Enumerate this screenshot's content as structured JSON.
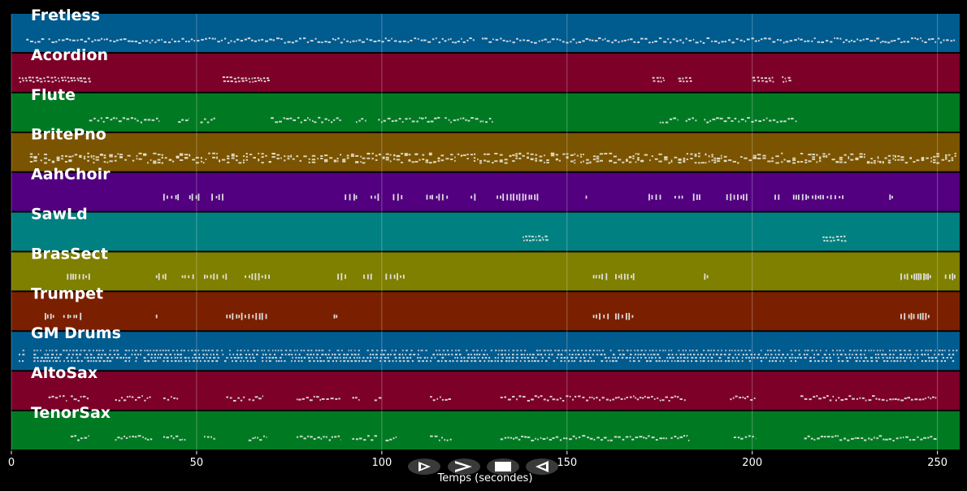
{
  "chart_data": {
    "type": "piano-roll",
    "xlabel": "Temps (secondes)",
    "xlim": [
      0,
      256
    ],
    "xticks": [
      0,
      50,
      100,
      150,
      200,
      250
    ],
    "grid": true,
    "tracks": [
      {
        "name": "Fretless",
        "color": "#005b8f",
        "pattern": "dense",
        "segments": [
          [
            4,
            9
          ],
          [
            10,
            125
          ],
          [
            127,
            255
          ]
        ]
      },
      {
        "name": "Acordion",
        "color": "#7d0028",
        "pattern": "cluster",
        "segments": [
          [
            2,
            21
          ],
          [
            57,
            69
          ],
          [
            173,
            176
          ],
          [
            180,
            183
          ],
          [
            200,
            206
          ],
          [
            208,
            210
          ]
        ]
      },
      {
        "name": "Flute",
        "color": "#007a22",
        "pattern": "line",
        "segments": [
          [
            21,
            40
          ],
          [
            45,
            48
          ],
          [
            51,
            55
          ],
          [
            70,
            89
          ],
          [
            93,
            96
          ],
          [
            99,
            116
          ],
          [
            117,
            130
          ],
          [
            175,
            180
          ],
          [
            182,
            185
          ],
          [
            187,
            212
          ]
        ]
      },
      {
        "name": "BritePno",
        "color": "#7a5400",
        "pattern": "chords",
        "segments": [
          [
            5,
            255
          ]
        ]
      },
      {
        "name": "AahChoir",
        "color": "#520080",
        "pattern": "blocks",
        "segments": [
          [
            41,
            45
          ],
          [
            48,
            51
          ],
          [
            54,
            57
          ],
          [
            90,
            93
          ],
          [
            97,
            99
          ],
          [
            103,
            106
          ],
          [
            112,
            118
          ],
          [
            124,
            125
          ],
          [
            131,
            143
          ],
          [
            155,
            156
          ],
          [
            172,
            175
          ],
          [
            179,
            181
          ],
          [
            184,
            186
          ],
          [
            193,
            199
          ],
          [
            206,
            207
          ],
          [
            211,
            225
          ],
          [
            237,
            238
          ]
        ]
      },
      {
        "name": "SawLd",
        "color": "#008080",
        "pattern": "cluster",
        "segments": [
          [
            138,
            144
          ],
          [
            219,
            225
          ]
        ]
      },
      {
        "name": "BrasSect",
        "color": "#7f7f00",
        "pattern": "stabs",
        "segments": [
          [
            15,
            21
          ],
          [
            39,
            42
          ],
          [
            46,
            49
          ],
          [
            52,
            56
          ],
          [
            57,
            58
          ],
          [
            63,
            70
          ],
          [
            88,
            90
          ],
          [
            95,
            97
          ],
          [
            101,
            104
          ],
          [
            104,
            106
          ],
          [
            157,
            161
          ],
          [
            163,
            168
          ],
          [
            187,
            188
          ],
          [
            240,
            248
          ],
          [
            252,
            255
          ]
        ]
      },
      {
        "name": "Trumpet",
        "color": "#7a2000",
        "pattern": "stabs",
        "segments": [
          [
            9,
            12
          ],
          [
            14,
            19
          ],
          [
            39,
            40
          ],
          [
            58,
            64
          ],
          [
            65,
            69
          ],
          [
            87,
            88
          ],
          [
            157,
            161
          ],
          [
            163,
            168
          ],
          [
            240,
            248
          ]
        ]
      },
      {
        "name": "GM Drums",
        "color": "#005b8f",
        "pattern": "drums",
        "segments": [
          [
            2,
            3
          ],
          [
            6,
            255
          ]
        ]
      },
      {
        "name": "AltoSax",
        "color": "#7d0028",
        "pattern": "line",
        "segments": [
          [
            10,
            15
          ],
          [
            16,
            21
          ],
          [
            28,
            38
          ],
          [
            41,
            45
          ],
          [
            58,
            63
          ],
          [
            64,
            68
          ],
          [
            77,
            89
          ],
          [
            92,
            94
          ],
          [
            98,
            100
          ],
          [
            113,
            119
          ],
          [
            132,
            146
          ],
          [
            146,
            182
          ],
          [
            194,
            201
          ],
          [
            213,
            250
          ]
        ]
      },
      {
        "name": "TenorSax",
        "color": "#007a22",
        "pattern": "line",
        "segments": [
          [
            16,
            21
          ],
          [
            28,
            38
          ],
          [
            41,
            47
          ],
          [
            52,
            55
          ],
          [
            64,
            69
          ],
          [
            77,
            89
          ],
          [
            92,
            99
          ],
          [
            101,
            104
          ],
          [
            113,
            119
          ],
          [
            132,
            146
          ],
          [
            146,
            177
          ],
          [
            178,
            183
          ],
          [
            195,
            201
          ],
          [
            214,
            250
          ]
        ]
      }
    ]
  },
  "controls": [
    {
      "name": "play-button",
      "glyph": "▶"
    },
    {
      "name": "forward-button",
      "glyph": ">"
    },
    {
      "name": "stop-button",
      "glyph": "■"
    },
    {
      "name": "rewind-button",
      "glyph": "◀"
    }
  ]
}
